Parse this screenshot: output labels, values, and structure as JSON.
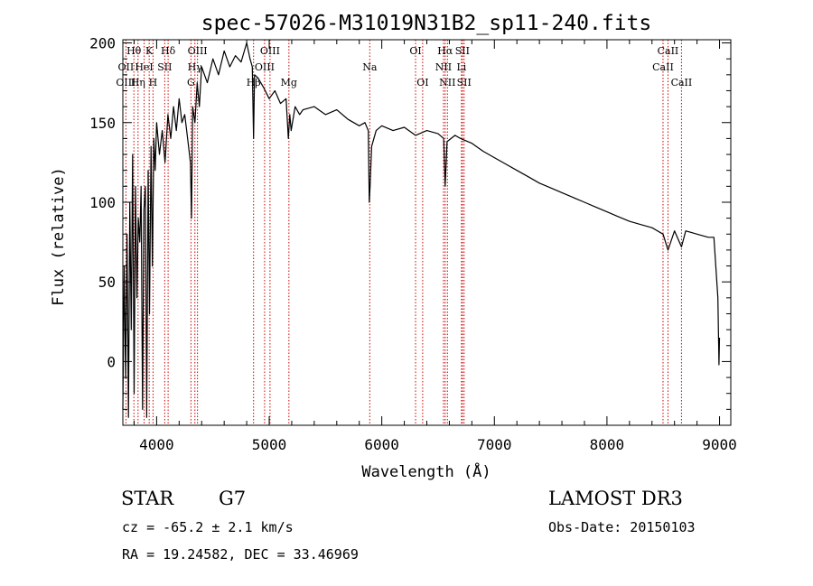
{
  "chart_data": {
    "type": "line",
    "title": "spec-57026-M31019N31B2_sp11-240.fits",
    "xlabel": "Wavelength (Å)",
    "ylabel": "Flux (relative)",
    "xlim": [
      3700,
      9100
    ],
    "ylim": [
      -40,
      202
    ],
    "xticks": [
      4000,
      5000,
      6000,
      7000,
      8000,
      9000
    ],
    "yticks": [
      0,
      50,
      100,
      150,
      200
    ],
    "grid": false,
    "series": [
      {
        "name": "flux",
        "x": [
          3700,
          3712,
          3725,
          3737,
          3750,
          3762,
          3775,
          3787,
          3800,
          3812,
          3825,
          3837,
          3850,
          3862,
          3875,
          3887,
          3900,
          3912,
          3925,
          3937,
          3950,
          3962,
          3975,
          3987,
          4000,
          4025,
          4050,
          4075,
          4100,
          4125,
          4150,
          4175,
          4200,
          4225,
          4250,
          4275,
          4300,
          4310,
          4320,
          4340,
          4360,
          4380,
          4400,
          4450,
          4500,
          4550,
          4600,
          4650,
          4700,
          4750,
          4800,
          4830,
          4850,
          4861,
          4870,
          4900,
          4950,
          5000,
          5050,
          5100,
          5150,
          5170,
          5183,
          5195,
          5230,
          5270,
          5300,
          5400,
          5500,
          5600,
          5700,
          5800,
          5850,
          5880,
          5889,
          5896,
          5910,
          5950,
          6000,
          6100,
          6200,
          6300,
          6400,
          6500,
          6550,
          6563,
          6580,
          6650,
          6700,
          6800,
          6900,
          7000,
          7100,
          7200,
          7300,
          7400,
          7500,
          7600,
          7700,
          7800,
          7900,
          8000,
          8100,
          8200,
          8300,
          8400,
          8498,
          8542,
          8600,
          8662,
          8700,
          8800,
          8900,
          8950,
          8985,
          8995,
          9000
        ],
        "values": [
          -30,
          60,
          -10,
          80,
          -35,
          100,
          20,
          130,
          -20,
          110,
          40,
          90,
          75,
          110,
          -30,
          95,
          110,
          -35,
          120,
          30,
          135,
          60,
          140,
          120,
          150,
          130,
          145,
          125,
          155,
          140,
          160,
          145,
          165,
          150,
          155,
          140,
          125,
          90,
          160,
          150,
          175,
          160,
          185,
          175,
          190,
          180,
          195,
          185,
          192,
          188,
          200,
          190,
          185,
          140,
          180,
          178,
          172,
          165,
          170,
          162,
          165,
          140,
          155,
          145,
          160,
          155,
          158,
          160,
          155,
          158,
          152,
          148,
          150,
          145,
          100,
          110,
          135,
          145,
          148,
          145,
          147,
          142,
          145,
          143,
          140,
          110,
          138,
          142,
          140,
          137,
          132,
          128,
          124,
          120,
          116,
          112,
          109,
          106,
          103,
          100,
          97,
          94,
          91,
          88,
          86,
          84,
          80,
          70,
          82,
          72,
          82,
          80,
          78,
          78,
          40,
          -2,
          15
        ]
      }
    ],
    "line_identifications": [
      {
        "label": "Hθ",
        "wavelength": 3798,
        "row": 1
      },
      {
        "label": "OII",
        "wavelength": 3727,
        "row": 2
      },
      {
        "label": "OIII",
        "wavelength": 3727,
        "row": 3
      },
      {
        "label": "K",
        "wavelength": 3934,
        "row": 1
      },
      {
        "label": "HeI",
        "wavelength": 3889,
        "row": 2
      },
      {
        "label": "Hη",
        "wavelength": 3835,
        "row": 3
      },
      {
        "label": "H",
        "wavelength": 3968,
        "row": 3
      },
      {
        "label": "Hδ",
        "wavelength": 4102,
        "row": 1
      },
      {
        "label": "SII",
        "wavelength": 4072,
        "row": 2
      },
      {
        "label": "OIII",
        "wavelength": 4363,
        "row": 1
      },
      {
        "label": "Hγ",
        "wavelength": 4340,
        "row": 2
      },
      {
        "label": "G",
        "wavelength": 4305,
        "row": 3
      },
      {
        "label": "OIII",
        "wavelength": 5007,
        "row": 1
      },
      {
        "label": "OIII",
        "wavelength": 4959,
        "row": 2
      },
      {
        "label": "Hβ",
        "wavelength": 4861,
        "row": 3
      },
      {
        "label": "Mg",
        "wavelength": 5175,
        "row": 3
      },
      {
        "label": "Na",
        "wavelength": 5893,
        "row": 2
      },
      {
        "label": "OI",
        "wavelength": 6300,
        "row": 1
      },
      {
        "label": "OI",
        "wavelength": 6363,
        "row": 3
      },
      {
        "label": "Hα",
        "wavelength": 6563,
        "row": 1
      },
      {
        "label": "SII",
        "wavelength": 6716,
        "row": 1
      },
      {
        "label": "NII",
        "wavelength": 6548,
        "row": 2
      },
      {
        "label": "Li",
        "wavelength": 6708,
        "row": 2
      },
      {
        "label": "NII",
        "wavelength": 6583,
        "row": 3
      },
      {
        "label": "SII",
        "wavelength": 6731,
        "row": 3
      },
      {
        "label": "CaII",
        "wavelength": 8542,
        "row": 1
      },
      {
        "label": "CaII",
        "wavelength": 8498,
        "row": 2
      },
      {
        "label": "CaII",
        "wavelength": 8662,
        "row": 3
      }
    ]
  },
  "info": {
    "object_class": "STAR",
    "subclass": "G7",
    "redshift_text": "cz = -65.2 ± 2.1 km/s",
    "coords_text": "RA =  19.24582, DEC =  33.46969",
    "survey": "LAMOST DR3",
    "obs_date": "Obs-Date: 20150103"
  }
}
